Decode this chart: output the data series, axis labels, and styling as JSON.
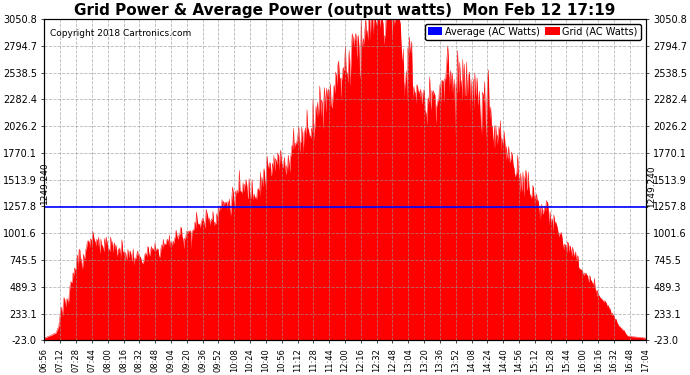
{
  "title": "Grid Power & Average Power (output watts)  Mon Feb 12 17:19",
  "copyright": "Copyright 2018 Cartronics.com",
  "ymin": -23.0,
  "ymax": 3050.8,
  "yticks": [
    3050.8,
    2794.7,
    2538.5,
    2282.4,
    2026.2,
    1770.1,
    1513.9,
    1257.8,
    1001.6,
    745.5,
    489.3,
    233.1,
    -23.0
  ],
  "average_value": 1249.24,
  "average_label": "1249.240",
  "bg_color": "#ffffff",
  "fill_color": "#ff0000",
  "line_color": "#ff0000",
  "avg_line_color": "#0000ff",
  "grid_color": "#999999",
  "title_fontsize": 11,
  "legend_blue_label": "Average (AC Watts)",
  "legend_red_label": "Grid (AC Watts)",
  "xtick_labels": [
    "06:56",
    "07:12",
    "07:28",
    "07:44",
    "08:00",
    "08:16",
    "08:32",
    "08:48",
    "09:04",
    "09:20",
    "09:36",
    "09:52",
    "10:08",
    "10:24",
    "10:40",
    "10:56",
    "11:12",
    "11:28",
    "11:44",
    "12:00",
    "12:16",
    "12:32",
    "12:48",
    "13:04",
    "13:20",
    "13:36",
    "13:52",
    "14:08",
    "14:24",
    "14:40",
    "14:56",
    "15:12",
    "15:28",
    "15:44",
    "16:00",
    "16:16",
    "16:32",
    "16:48",
    "17:04"
  ]
}
